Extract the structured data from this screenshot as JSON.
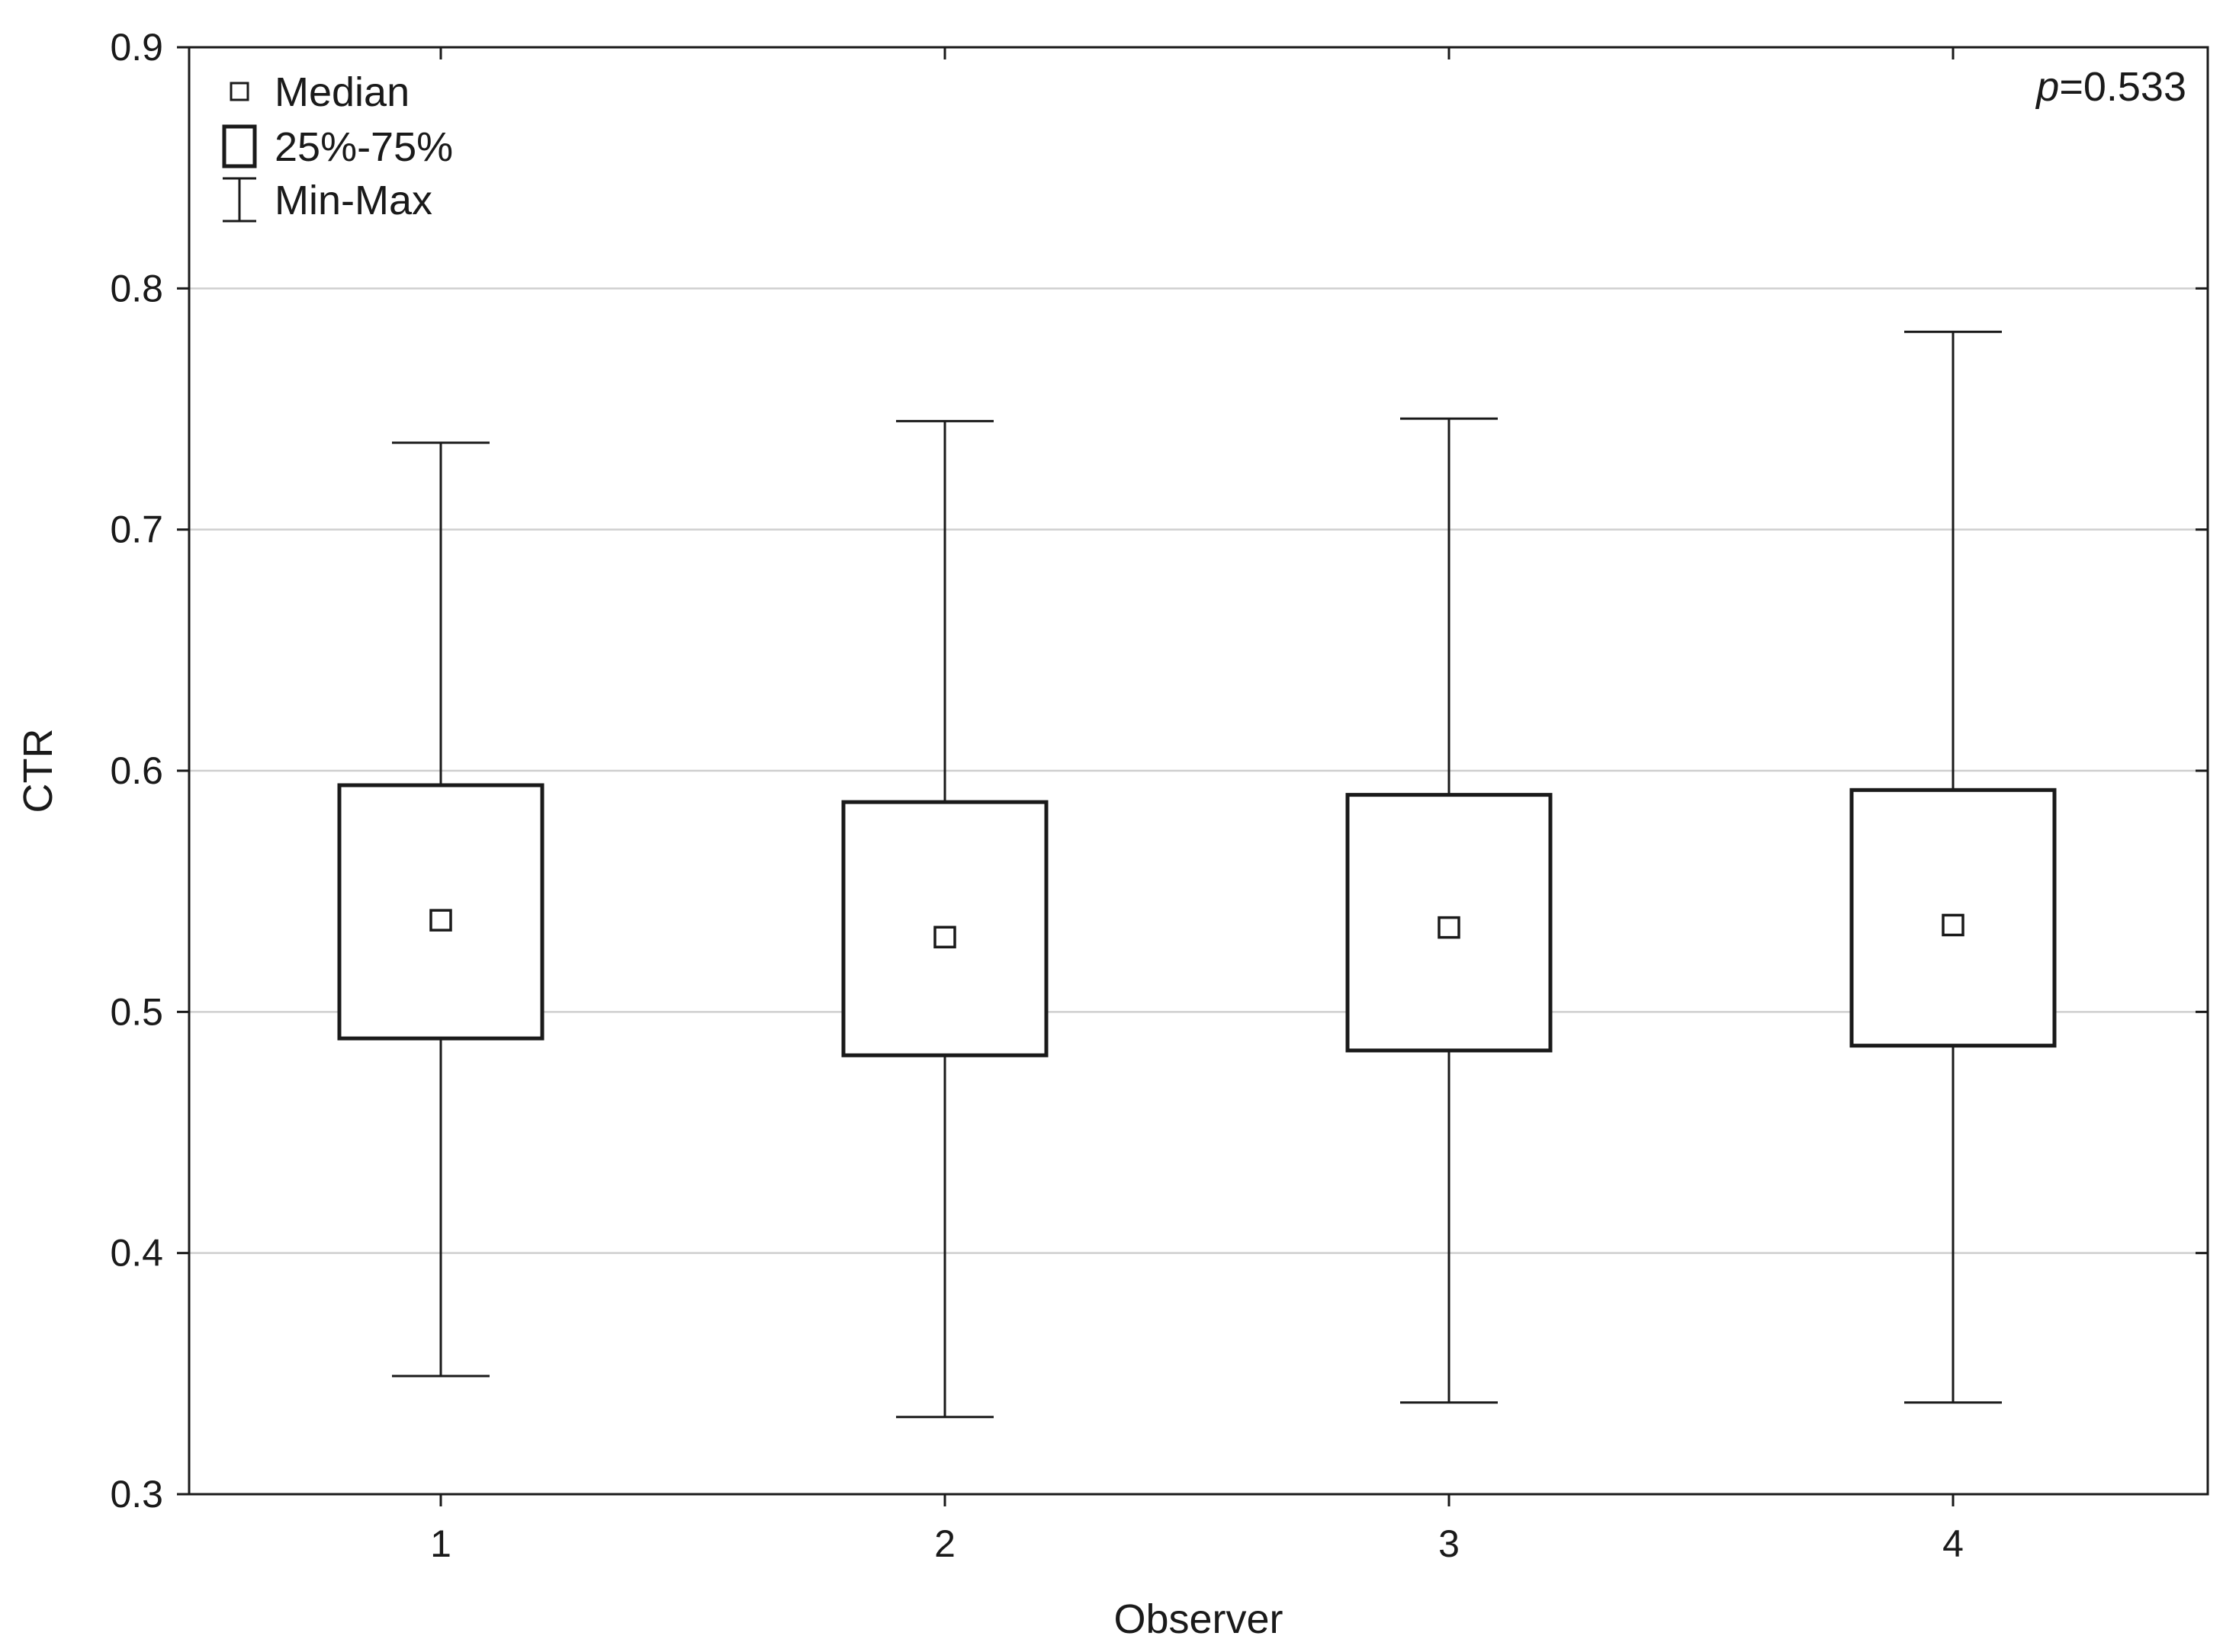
{
  "chart_data": {
    "type": "boxplot",
    "xlabel": "Observer",
    "ylabel": "CTR",
    "ylim": [
      0.3,
      0.9
    ],
    "yticks": [
      "0.3",
      "0.4",
      "0.5",
      "0.6",
      "0.7",
      "0.8",
      "0.9"
    ],
    "grid": true,
    "categories": [
      "1",
      "2",
      "3",
      "4"
    ],
    "boxes": [
      {
        "category": "1",
        "min": 0.349,
        "q1": 0.489,
        "median": 0.538,
        "q3": 0.594,
        "max": 0.736
      },
      {
        "category": "2",
        "min": 0.332,
        "q1": 0.482,
        "median": 0.531,
        "q3": 0.587,
        "max": 0.745
      },
      {
        "category": "3",
        "min": 0.338,
        "q1": 0.484,
        "median": 0.535,
        "q3": 0.59,
        "max": 0.746
      },
      {
        "category": "4",
        "min": 0.338,
        "q1": 0.486,
        "median": 0.536,
        "q3": 0.592,
        "max": 0.782
      }
    ],
    "legend": {
      "placement": "top-left",
      "items": [
        {
          "symbol": "square-marker",
          "label": "Median"
        },
        {
          "symbol": "box",
          "label": "25%-75%"
        },
        {
          "symbol": "whisker",
          "label": "Min-Max"
        }
      ]
    },
    "annotation": {
      "italic": "p",
      "text": "=0.533",
      "placement": "top-right"
    }
  }
}
